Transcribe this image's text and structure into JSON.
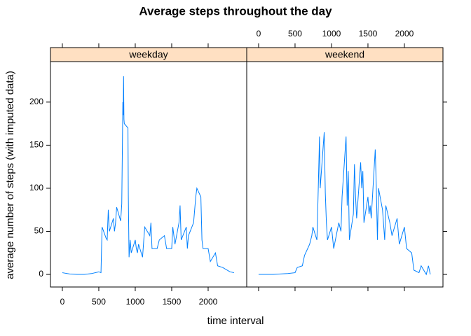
{
  "chart_data": {
    "type": "line",
    "title": "Average steps throughout the day",
    "xlabel": "time interval",
    "ylabel": "average number of steps (with imputed data)",
    "color": "#0080ff",
    "strip_color": "#ffe0c2",
    "xlim": [
      -163,
      2529
    ],
    "ylim": [
      -14.6,
      247
    ],
    "xticks": [
      0,
      500,
      1000,
      1500,
      2000
    ],
    "yticks": [
      0,
      50,
      100,
      150,
      200
    ],
    "panels": [
      {
        "name": "weekday",
        "x": [
          0,
          100,
          200,
          300,
          400,
          500,
          530,
          545,
          600,
          615,
          630,
          645,
          700,
          715,
          730,
          745,
          800,
          815,
          830,
          835,
          840,
          845,
          850,
          900,
          905,
          915,
          930,
          945,
          1000,
          1015,
          1030,
          1045,
          1100,
          1130,
          1200,
          1215,
          1230,
          1300,
          1330,
          1400,
          1430,
          1500,
          1515,
          1530,
          1545,
          1600,
          1615,
          1630,
          1700,
          1715,
          1730,
          1800,
          1830,
          1845,
          1900,
          1915,
          1930,
          2000,
          2030,
          2100,
          2130,
          2200,
          2300,
          2355
        ],
        "values": [
          2,
          0.5,
          0,
          0,
          1,
          3,
          2,
          55,
          42,
          40,
          75,
          50,
          65,
          50,
          60,
          78,
          62,
          82,
          200,
          185,
          230,
          180,
          175,
          170,
          92,
          20,
          40,
          25,
          40,
          30,
          25,
          35,
          20,
          55,
          45,
          60,
          30,
          30,
          40,
          45,
          30,
          30,
          55,
          45,
          35,
          60,
          80,
          40,
          55,
          30,
          45,
          60,
          90,
          100,
          90,
          40,
          30,
          30,
          15,
          25,
          10,
          8,
          3,
          2
        ]
      },
      {
        "name": "weekend",
        "x": [
          0,
          200,
          400,
          500,
          530,
          600,
          630,
          700,
          730,
          745,
          800,
          815,
          830,
          835,
          845,
          900,
          915,
          930,
          945,
          1000,
          1030,
          1100,
          1130,
          1145,
          1200,
          1215,
          1230,
          1245,
          1300,
          1315,
          1330,
          1345,
          1400,
          1415,
          1430,
          1445,
          1500,
          1515,
          1530,
          1545,
          1600,
          1615,
          1630,
          1645,
          1700,
          1730,
          1745,
          1800,
          1830,
          1900,
          1930,
          2000,
          2030,
          2100,
          2130,
          2200,
          2230,
          2300,
          2330,
          2355
        ],
        "values": [
          0,
          0,
          1,
          2,
          8,
          10,
          22,
          35,
          45,
          55,
          40,
          88,
          140,
          160,
          100,
          165,
          95,
          60,
          40,
          55,
          30,
          60,
          50,
          90,
          160,
          80,
          120,
          40,
          70,
          128,
          90,
          65,
          130,
          100,
          120,
          60,
          90,
          70,
          80,
          65,
          145,
          100,
          40,
          100,
          75,
          40,
          80,
          60,
          45,
          65,
          35,
          55,
          30,
          25,
          5,
          2,
          10,
          0,
          10,
          0
        ]
      }
    ]
  }
}
